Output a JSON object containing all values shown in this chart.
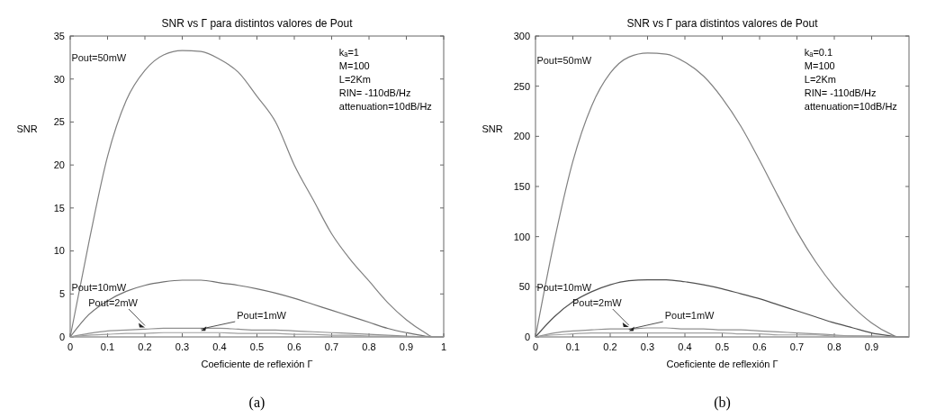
{
  "chart_data": [
    {
      "type": "line",
      "title": "SNR vs Γ para distintos valores de Pout",
      "xlabel": "Coeficiente de reflexión Γ",
      "ylabel": "SNR",
      "x": [
        0,
        0.05,
        0.1,
        0.15,
        0.2,
        0.25,
        0.3,
        0.35,
        0.4,
        0.45,
        0.5,
        0.55,
        0.6,
        0.65,
        0.7,
        0.75,
        0.8,
        0.85,
        0.9,
        0.95,
        0.97,
        1
      ],
      "series": [
        {
          "name": "Pout=50mW",
          "color": "#808080",
          "values": [
            0,
            11,
            21,
            27.5,
            31,
            32.8,
            33.3,
            33.2,
            32.3,
            30.8,
            28,
            25,
            20,
            16,
            12,
            9,
            6.5,
            4,
            2,
            0.5,
            0,
            0
          ]
        },
        {
          "name": "Pout=10mW",
          "color": "#707070",
          "values": [
            0,
            2.6,
            4.2,
            5.3,
            6,
            6.4,
            6.6,
            6.6,
            6.3,
            6,
            5.6,
            5.1,
            4.5,
            3.8,
            3.1,
            2.4,
            1.7,
            1,
            0.5,
            0.1,
            0,
            0
          ]
        },
        {
          "name": "Pout=2mW",
          "color": "#909090",
          "values": [
            0,
            0.4,
            0.7,
            0.8,
            0.9,
            1,
            1,
            1,
            1,
            0.9,
            0.8,
            0.8,
            0.7,
            0.6,
            0.5,
            0.4,
            0.3,
            0.2,
            0.1,
            0,
            0,
            0
          ]
        },
        {
          "name": "Pout=1mW",
          "color": "#a0a0a0",
          "values": [
            0,
            0.2,
            0.3,
            0.4,
            0.4,
            0.5,
            0.5,
            0.5,
            0.5,
            0.4,
            0.4,
            0.4,
            0.3,
            0.3,
            0.2,
            0.2,
            0.1,
            0.1,
            0,
            0,
            0,
            0
          ]
        }
      ],
      "xlim": [
        0,
        1
      ],
      "xticks": [
        0,
        0.1,
        0.2,
        0.3,
        0.4,
        0.5,
        0.6,
        0.7,
        0.8,
        0.9,
        1
      ],
      "ylim": [
        0,
        35
      ],
      "yticks": [
        0,
        5,
        10,
        15,
        20,
        25,
        30,
        35
      ],
      "grid": false,
      "legend": false,
      "annotations": [
        "kₐ=1",
        "M=100",
        "L=2Km",
        "RIN= -110dB/Hz",
        "attenuation=10dB/Hz",
        "(a)"
      ]
    },
    {
      "type": "line",
      "title": "SNR vs Γ para distintos valores de Pout",
      "xlabel": "Coeficiente de reflexión Γ",
      "ylabel": "SNR",
      "x": [
        0,
        0.05,
        0.1,
        0.15,
        0.2,
        0.25,
        0.3,
        0.35,
        0.4,
        0.45,
        0.5,
        0.55,
        0.6,
        0.65,
        0.7,
        0.75,
        0.8,
        0.85,
        0.9,
        0.95,
        0.97,
        1
      ],
      "series": [
        {
          "name": "Pout=50mW",
          "color": "#808080",
          "values": [
            0,
            95,
            175,
            230,
            263,
            279,
            283,
            282,
            274,
            260,
            238,
            210,
            176,
            140,
            105,
            75,
            50,
            30,
            14,
            3,
            0,
            0
          ]
        },
        {
          "name": "Pout=10mW",
          "color": "#505050",
          "values": [
            0,
            20,
            35,
            45,
            52,
            56,
            57,
            57,
            55,
            52,
            48,
            43,
            38,
            32,
            26,
            20,
            14,
            9,
            4,
            1,
            0,
            0
          ]
        },
        {
          "name": "Pout=2mW",
          "color": "#909090",
          "values": [
            0,
            4,
            6,
            7,
            8,
            8,
            9,
            9,
            8,
            8,
            7,
            7,
            6,
            5,
            4,
            3,
            2,
            1,
            1,
            0,
            0,
            0
          ]
        },
        {
          "name": "Pout=1mW",
          "color": "#a0a0a0",
          "values": [
            0,
            2,
            3,
            4,
            4,
            4,
            4,
            4,
            4,
            4,
            4,
            3,
            3,
            2,
            2,
            2,
            1,
            1,
            0,
            0,
            0,
            0
          ]
        }
      ],
      "xlim": [
        0,
        1
      ],
      "xticks": [
        0,
        0.1,
        0.2,
        0.3,
        0.4,
        0.5,
        0.6,
        0.7,
        0.8,
        0.9
      ],
      "ylim": [
        0,
        300
      ],
      "yticks": [
        0,
        50,
        100,
        150,
        200,
        250,
        300
      ],
      "grid": false,
      "legend": false,
      "annotations": [
        "kₐ=0.1",
        "M=100",
        "L=2Km",
        "RIN= -110dB/Hz",
        "attenuation=10dB/Hz",
        "(b)"
      ]
    }
  ]
}
